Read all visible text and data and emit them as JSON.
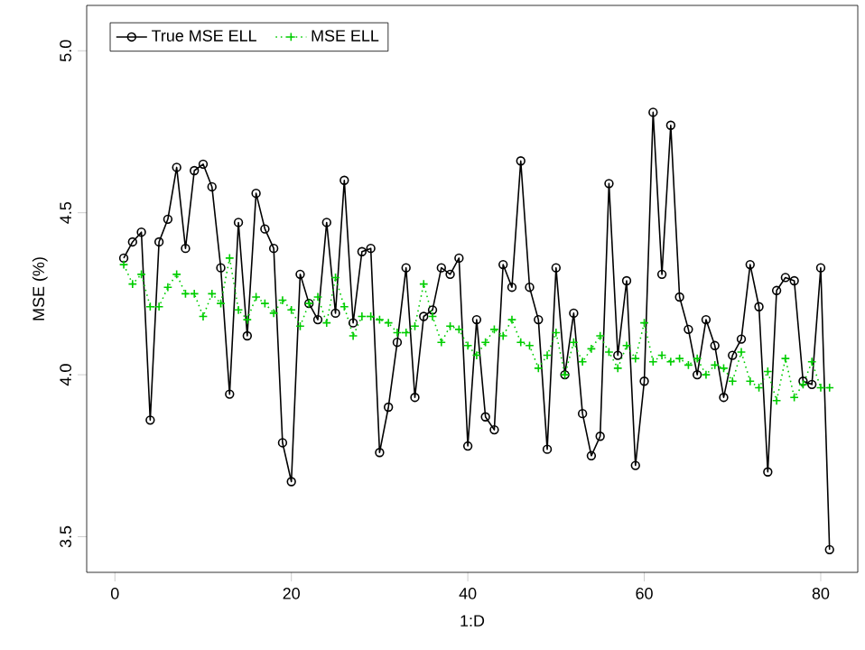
{
  "chart_data": {
    "type": "line",
    "xlabel": "1:D",
    "ylabel": "MSE (%)",
    "x": [
      1,
      2,
      3,
      4,
      5,
      6,
      7,
      8,
      9,
      10,
      11,
      12,
      13,
      14,
      15,
      16,
      17,
      18,
      19,
      20,
      21,
      22,
      23,
      24,
      25,
      26,
      27,
      28,
      29,
      30,
      31,
      32,
      33,
      34,
      35,
      36,
      37,
      38,
      39,
      40,
      41,
      42,
      43,
      44,
      45,
      46,
      47,
      48,
      49,
      50,
      51,
      52,
      53,
      54,
      55,
      56,
      57,
      58,
      59,
      60,
      61,
      62,
      63,
      64,
      65,
      66,
      67,
      68,
      69,
      70,
      71,
      72,
      73,
      74,
      75,
      76,
      77,
      78,
      79,
      80,
      81
    ],
    "xlim": [
      -3.2,
      84.2
    ],
    "xticks": [
      0,
      20,
      40,
      60,
      80
    ],
    "ylim": [
      3.39,
      5.14
    ],
    "yticks": [
      3.5,
      {
        "value": 4,
        "label": "4.0"
      },
      4.5,
      {
        "value": 5,
        "label": "5.0"
      }
    ],
    "grid": false,
    "legend": "top left",
    "series": [
      {
        "name": "True MSE ELL",
        "color": "#000000",
        "marker": "circle",
        "line_style": "solid",
        "values": [
          4.36,
          4.41,
          4.44,
          3.86,
          4.41,
          4.48,
          4.64,
          4.39,
          4.63,
          4.65,
          4.58,
          4.33,
          3.94,
          4.47,
          4.12,
          4.56,
          4.45,
          4.39,
          3.79,
          3.67,
          4.31,
          4.22,
          4.17,
          4.47,
          4.19,
          4.6,
          4.16,
          4.38,
          4.39,
          3.76,
          3.9,
          4.1,
          4.33,
          3.93,
          4.18,
          4.2,
          4.33,
          4.31,
          4.36,
          3.78,
          4.17,
          3.87,
          3.83,
          4.34,
          4.27,
          4.66,
          4.27,
          4.17,
          3.77,
          4.33,
          4.0,
          4.19,
          3.88,
          3.75,
          3.81,
          4.59,
          4.06,
          4.29,
          3.72,
          3.98,
          4.81,
          4.31,
          4.77,
          4.24,
          4.14,
          4.0,
          4.17,
          4.09,
          3.93,
          4.06,
          4.11,
          4.34,
          4.21,
          3.7,
          4.26,
          4.3,
          4.29,
          3.98,
          3.97,
          4.33,
          3.46
        ]
      },
      {
        "name": "MSE ELL",
        "color": "#00cd00",
        "marker": "cross",
        "line_style": "dotted",
        "values": [
          4.34,
          4.28,
          4.31,
          4.21,
          4.21,
          4.27,
          4.31,
          4.25,
          4.25,
          4.18,
          4.25,
          4.22,
          4.36,
          4.2,
          4.17,
          4.24,
          4.22,
          4.19,
          4.23,
          4.2,
          4.15,
          4.22,
          4.24,
          4.16,
          4.3,
          4.21,
          4.12,
          4.18,
          4.18,
          4.17,
          4.16,
          4.13,
          4.13,
          4.15,
          4.28,
          4.18,
          4.1,
          4.15,
          4.14,
          4.09,
          4.06,
          4.1,
          4.14,
          4.12,
          4.17,
          4.1,
          4.09,
          4.02,
          4.06,
          4.13,
          4.0,
          4.1,
          4.04,
          4.08,
          4.12,
          4.07,
          4.02,
          4.09,
          4.05,
          4.16,
          4.04,
          4.06,
          4.04,
          4.05,
          4.03,
          4.05,
          4.0,
          4.03,
          4.02,
          3.98,
          4.07,
          3.98,
          3.96,
          4.01,
          3.92,
          4.05,
          3.93,
          3.97,
          4.04,
          3.96,
          3.96
        ]
      }
    ]
  }
}
